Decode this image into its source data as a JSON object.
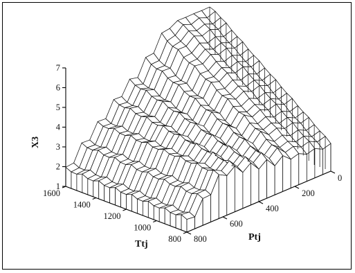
{
  "chart_data": {
    "type": "surface3d",
    "title": "",
    "zlabel": "X3",
    "xlabel": "Ttj",
    "ylabel": "Ptj",
    "z_ticks": [
      "1",
      "2",
      "3",
      "4",
      "5",
      "6",
      "7"
    ],
    "x_ticks": [
      "1600",
      "1400",
      "1200",
      "1000",
      "800"
    ],
    "y_ticks": [
      "0",
      "200",
      "400",
      "600",
      "800"
    ],
    "zlim": [
      1,
      7
    ],
    "xlim": [
      800,
      1600
    ],
    "ylim": [
      0,
      800
    ],
    "grid": false,
    "surface": {
      "ptj_step_values": [
        0,
        100,
        200,
        300,
        400,
        500,
        600,
        700,
        800
      ],
      "x3_levels_at_ttj_1600": [
        7.0,
        7.0,
        7.0,
        6.0,
        5.0,
        4.3,
        3.4,
        2.6,
        1.6
      ],
      "x3_levels_at_ttj_800": [
        2.3,
        2.4,
        2.5,
        2.6,
        2.8,
        3.0,
        3.2,
        2.2,
        1.4
      ],
      "description_values": "X3 rises as Ptj approaches 0; highest (~7) at Ptj 0-200, lowest (~1.5) at Ptj 800"
    }
  }
}
